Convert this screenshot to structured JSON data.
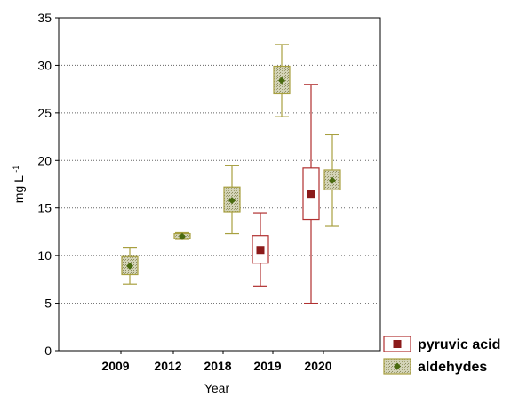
{
  "chart_data": {
    "type": "boxplot",
    "title": "",
    "xlabel": "Year",
    "ylabel": "mg L",
    "ylabel_superscript": "-1",
    "ylim": [
      0,
      35
    ],
    "yticks": [
      0,
      5,
      10,
      15,
      20,
      25,
      30,
      35
    ],
    "categories": [
      "2009",
      "2012",
      "2018",
      "2019",
      "2020"
    ],
    "grid": "horizontal dotted",
    "legend_position": "bottom-right outside",
    "series": [
      {
        "name": "pyruvic acid",
        "color": "#8b1a1a",
        "box_fill": "#ffffff",
        "edge_color": "#b03030",
        "marker": "square",
        "points": [
          {
            "category": "2019",
            "mean": 10.6,
            "box_low": 9.2,
            "box_high": 12.1,
            "whisker_low": 6.8,
            "whisker_high": 14.5
          },
          {
            "category": "2020",
            "mean": 16.5,
            "box_low": 13.8,
            "box_high": 19.2,
            "whisker_low": 5.0,
            "whisker_high": 28.0
          }
        ]
      },
      {
        "name": "aldehydes",
        "color": "#4a6b10",
        "box_fill": "#c8c8a8",
        "edge_color": "#a8a040",
        "marker": "diamond",
        "points": [
          {
            "category": "2009",
            "mean": 8.9,
            "box_low": 8.0,
            "box_high": 9.9,
            "whisker_low": 7.0,
            "whisker_high": 10.8
          },
          {
            "category": "2012",
            "mean": 12.0,
            "box_low": 11.8,
            "box_high": 12.3,
            "whisker_low": 11.7,
            "whisker_high": 12.4
          },
          {
            "category": "2018",
            "mean": 15.8,
            "box_low": 14.6,
            "box_high": 17.2,
            "whisker_low": 12.3,
            "whisker_high": 19.5
          },
          {
            "category": "2019",
            "mean": 28.4,
            "box_low": 27.0,
            "box_high": 29.9,
            "whisker_low": 24.6,
            "whisker_high": 32.2
          },
          {
            "category": "2020",
            "mean": 17.9,
            "box_low": 16.9,
            "box_high": 19.0,
            "whisker_low": 13.1,
            "whisker_high": 22.7
          }
        ]
      }
    ]
  }
}
